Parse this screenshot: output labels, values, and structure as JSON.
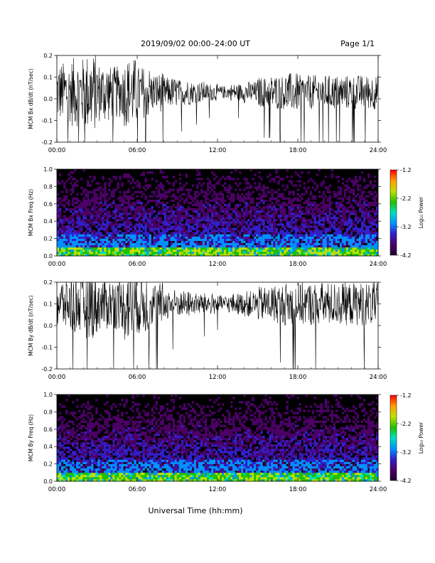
{
  "header": {
    "title": "2019/09/02  00:00–24:00 UT",
    "page": "Page 1/1"
  },
  "footer": {
    "xlabel": "Universal Time (hh:mm)"
  },
  "colors": {
    "trace": "#000000",
    "background_dark": "#000000",
    "colorbar": [
      "#4b0066",
      "#3020c8",
      "#0090ff",
      "#00e0c0",
      "#20c000",
      "#c0e000",
      "#ffd000",
      "#ff6000",
      "#ff0000"
    ]
  },
  "chart_data": [
    {
      "type": "line",
      "ylabel": "MCM Bx dB/dt (nT/sec)",
      "ylim": [
        -0.2,
        0.2
      ],
      "yticks": [
        "-0.2",
        "-0.1",
        "0.0",
        "0.1",
        "0.2"
      ],
      "yticks_values": [
        -0.2,
        -0.1,
        0.0,
        0.1,
        0.2
      ],
      "xticks": [
        "00:00",
        "06:00",
        "12:00",
        "18:00",
        "24:00"
      ],
      "xlim_hours": [
        0,
        24
      ],
      "series": [
        {
          "baseline": 0.03,
          "amplitude_by_hour": [
            0.14,
            0.16,
            0.18,
            0.14,
            0.12,
            0.16,
            0.12,
            0.09,
            0.07,
            0.06,
            0.05,
            0.04,
            0.03,
            0.04,
            0.05,
            0.07,
            0.08,
            0.09,
            0.08,
            0.08,
            0.08,
            0.08,
            0.08,
            0.08
          ]
        }
      ]
    },
    {
      "type": "heatmap",
      "ylabel": "MCM Bx Freq (Hz)",
      "ylim": [
        0.0,
        1.0
      ],
      "yticks": [
        "0.0",
        "0.2",
        "0.4",
        "0.6",
        "0.8",
        "1.0"
      ],
      "yticks_values": [
        0.0,
        0.2,
        0.4,
        0.6,
        0.8,
        1.0
      ],
      "xticks": [
        "00:00",
        "06:00",
        "12:00",
        "18:00",
        "24:00"
      ],
      "colorbar": {
        "label": "Log₁₀ Power",
        "ticks": [
          "-1.2",
          "-2.2",
          "-3.2",
          "-4.2"
        ],
        "range": [
          -4.2,
          -1.2
        ]
      }
    },
    {
      "type": "line",
      "ylabel": "MCM By dB/dt (nT/sec)",
      "ylim": [
        -0.2,
        0.2
      ],
      "yticks": [
        "-0.2",
        "-0.1",
        "0.0",
        "0.1",
        "0.2"
      ],
      "yticks_values": [
        -0.2,
        -0.1,
        0.0,
        0.1,
        0.2
      ],
      "xticks": [
        "00:00",
        "06:00",
        "12:00",
        "18:00",
        "24:00"
      ],
      "xlim_hours": [
        0,
        24
      ],
      "series": [
        {
          "baseline": 0.1,
          "amplitude_by_hour": [
            0.12,
            0.14,
            0.16,
            0.12,
            0.12,
            0.18,
            0.14,
            0.1,
            0.07,
            0.06,
            0.05,
            0.05,
            0.04,
            0.05,
            0.06,
            0.08,
            0.09,
            0.1,
            0.1,
            0.1,
            0.1,
            0.1,
            0.1,
            0.1
          ]
        }
      ]
    },
    {
      "type": "heatmap",
      "ylabel": "MCM By Freq (Hz)",
      "ylim": [
        0.0,
        1.0
      ],
      "yticks": [
        "0.0",
        "0.2",
        "0.4",
        "0.6",
        "0.8",
        "1.0"
      ],
      "yticks_values": [
        0.0,
        0.2,
        0.4,
        0.6,
        0.8,
        1.0
      ],
      "xticks": [
        "00:00",
        "06:00",
        "12:00",
        "18:00",
        "24:00"
      ],
      "colorbar": {
        "label": "Log₁₀ Power",
        "ticks": [
          "-1.2",
          "-2.2",
          "-3.2",
          "-4.2"
        ],
        "range": [
          -4.2,
          -1.2
        ]
      }
    }
  ]
}
